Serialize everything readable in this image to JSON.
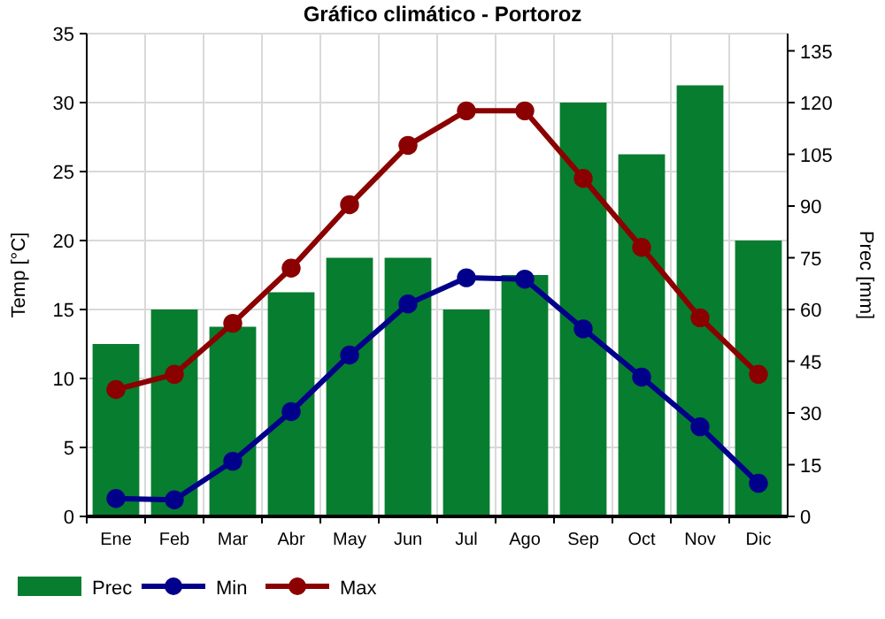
{
  "chart_data": {
    "type": "bar",
    "title": "Gráfico climático - Portoroz",
    "ylabel": "Temp [°C]",
    "y2label": "Prec [mm]",
    "categories": [
      "Ene",
      "Feb",
      "Mar",
      "Abr",
      "May",
      "Jun",
      "Jul",
      "Ago",
      "Sep",
      "Oct",
      "Nov",
      "Dic"
    ],
    "series": [
      {
        "name": "Prec",
        "axis": "y2",
        "color": "#077d2f",
        "values": [
          50,
          60,
          55,
          65,
          75,
          75,
          60,
          70,
          120,
          105,
          125,
          80
        ]
      },
      {
        "name": "Min",
        "type": "line",
        "color": "#00008b",
        "values": [
          1.3,
          1.2,
          4.0,
          7.6,
          11.7,
          15.4,
          17.3,
          17.2,
          13.6,
          10.1,
          6.5,
          2.4
        ]
      },
      {
        "name": "Max",
        "type": "line",
        "color": "#8b0000",
        "values": [
          9.2,
          10.3,
          14.0,
          18.0,
          22.6,
          26.9,
          29.4,
          29.4,
          24.5,
          19.5,
          14.4,
          10.3
        ]
      }
    ],
    "ylim": [
      0,
      35
    ],
    "yticks": [
      0,
      5,
      10,
      15,
      20,
      25,
      30,
      35
    ],
    "y2lim": [
      0,
      140
    ],
    "y2ticks": [
      0,
      15,
      30,
      45,
      60,
      75,
      90,
      105,
      120,
      135
    ],
    "grid": true,
    "legend": "bottom left",
    "marker": "circle",
    "line_style": "solid"
  }
}
